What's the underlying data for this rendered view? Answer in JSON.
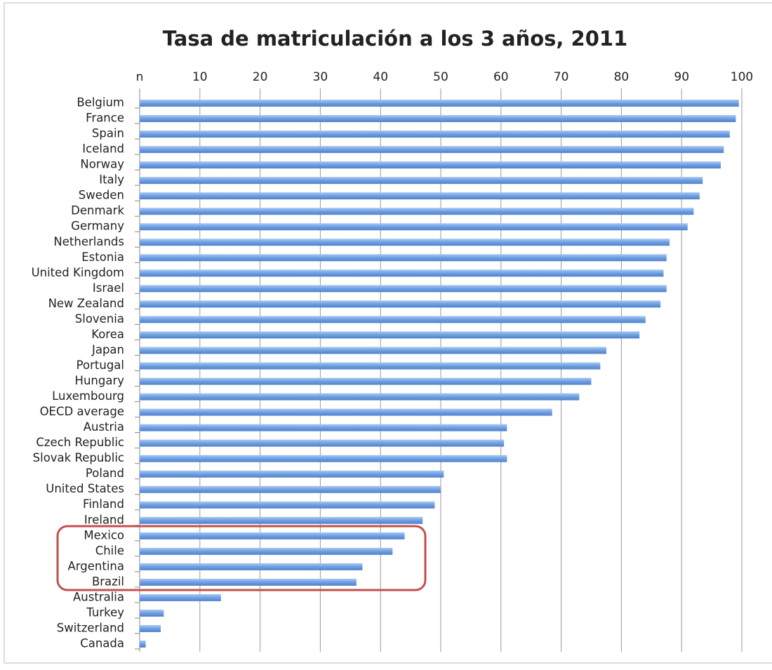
{
  "chart_data": {
    "type": "barh",
    "title": "Tasa de matriculación a los 3 años, 2011",
    "categories": [
      "Belgium",
      "France",
      "Spain",
      "Iceland",
      "Norway",
      "Italy",
      "Sweden",
      "Denmark",
      "Germany",
      "Netherlands",
      "Estonia",
      "United Kingdom",
      "Israel",
      "New Zealand",
      "Slovenia",
      "Korea",
      "Japan",
      "Portugal",
      "Hungary",
      "Luxembourg",
      "OECD average",
      "Austria",
      "Czech Republic",
      "Slovak Republic",
      "Poland",
      "United States",
      "Finland",
      "Ireland",
      "Mexico",
      "Chile",
      "Argentina",
      "Brazil",
      "Australia",
      "Turkey",
      "Switzerland",
      "Canada"
    ],
    "values": [
      99.5,
      99,
      98,
      97,
      96.5,
      93.5,
      93,
      92,
      91,
      88,
      87.5,
      87,
      87.5,
      86.5,
      84,
      83,
      77.5,
      76.5,
      75,
      73,
      68.5,
      61,
      60.5,
      61,
      50.5,
      50,
      49,
      47,
      44,
      42,
      37,
      36,
      13.5,
      4,
      3.5,
      1
    ],
    "color": "#7aa7e6",
    "xlim": [
      0,
      100
    ],
    "xticks": [
      {
        "value": 0,
        "label": "n"
      },
      10,
      20,
      30,
      40,
      50,
      60,
      70,
      80,
      90,
      100
    ],
    "grid": true
  }
}
